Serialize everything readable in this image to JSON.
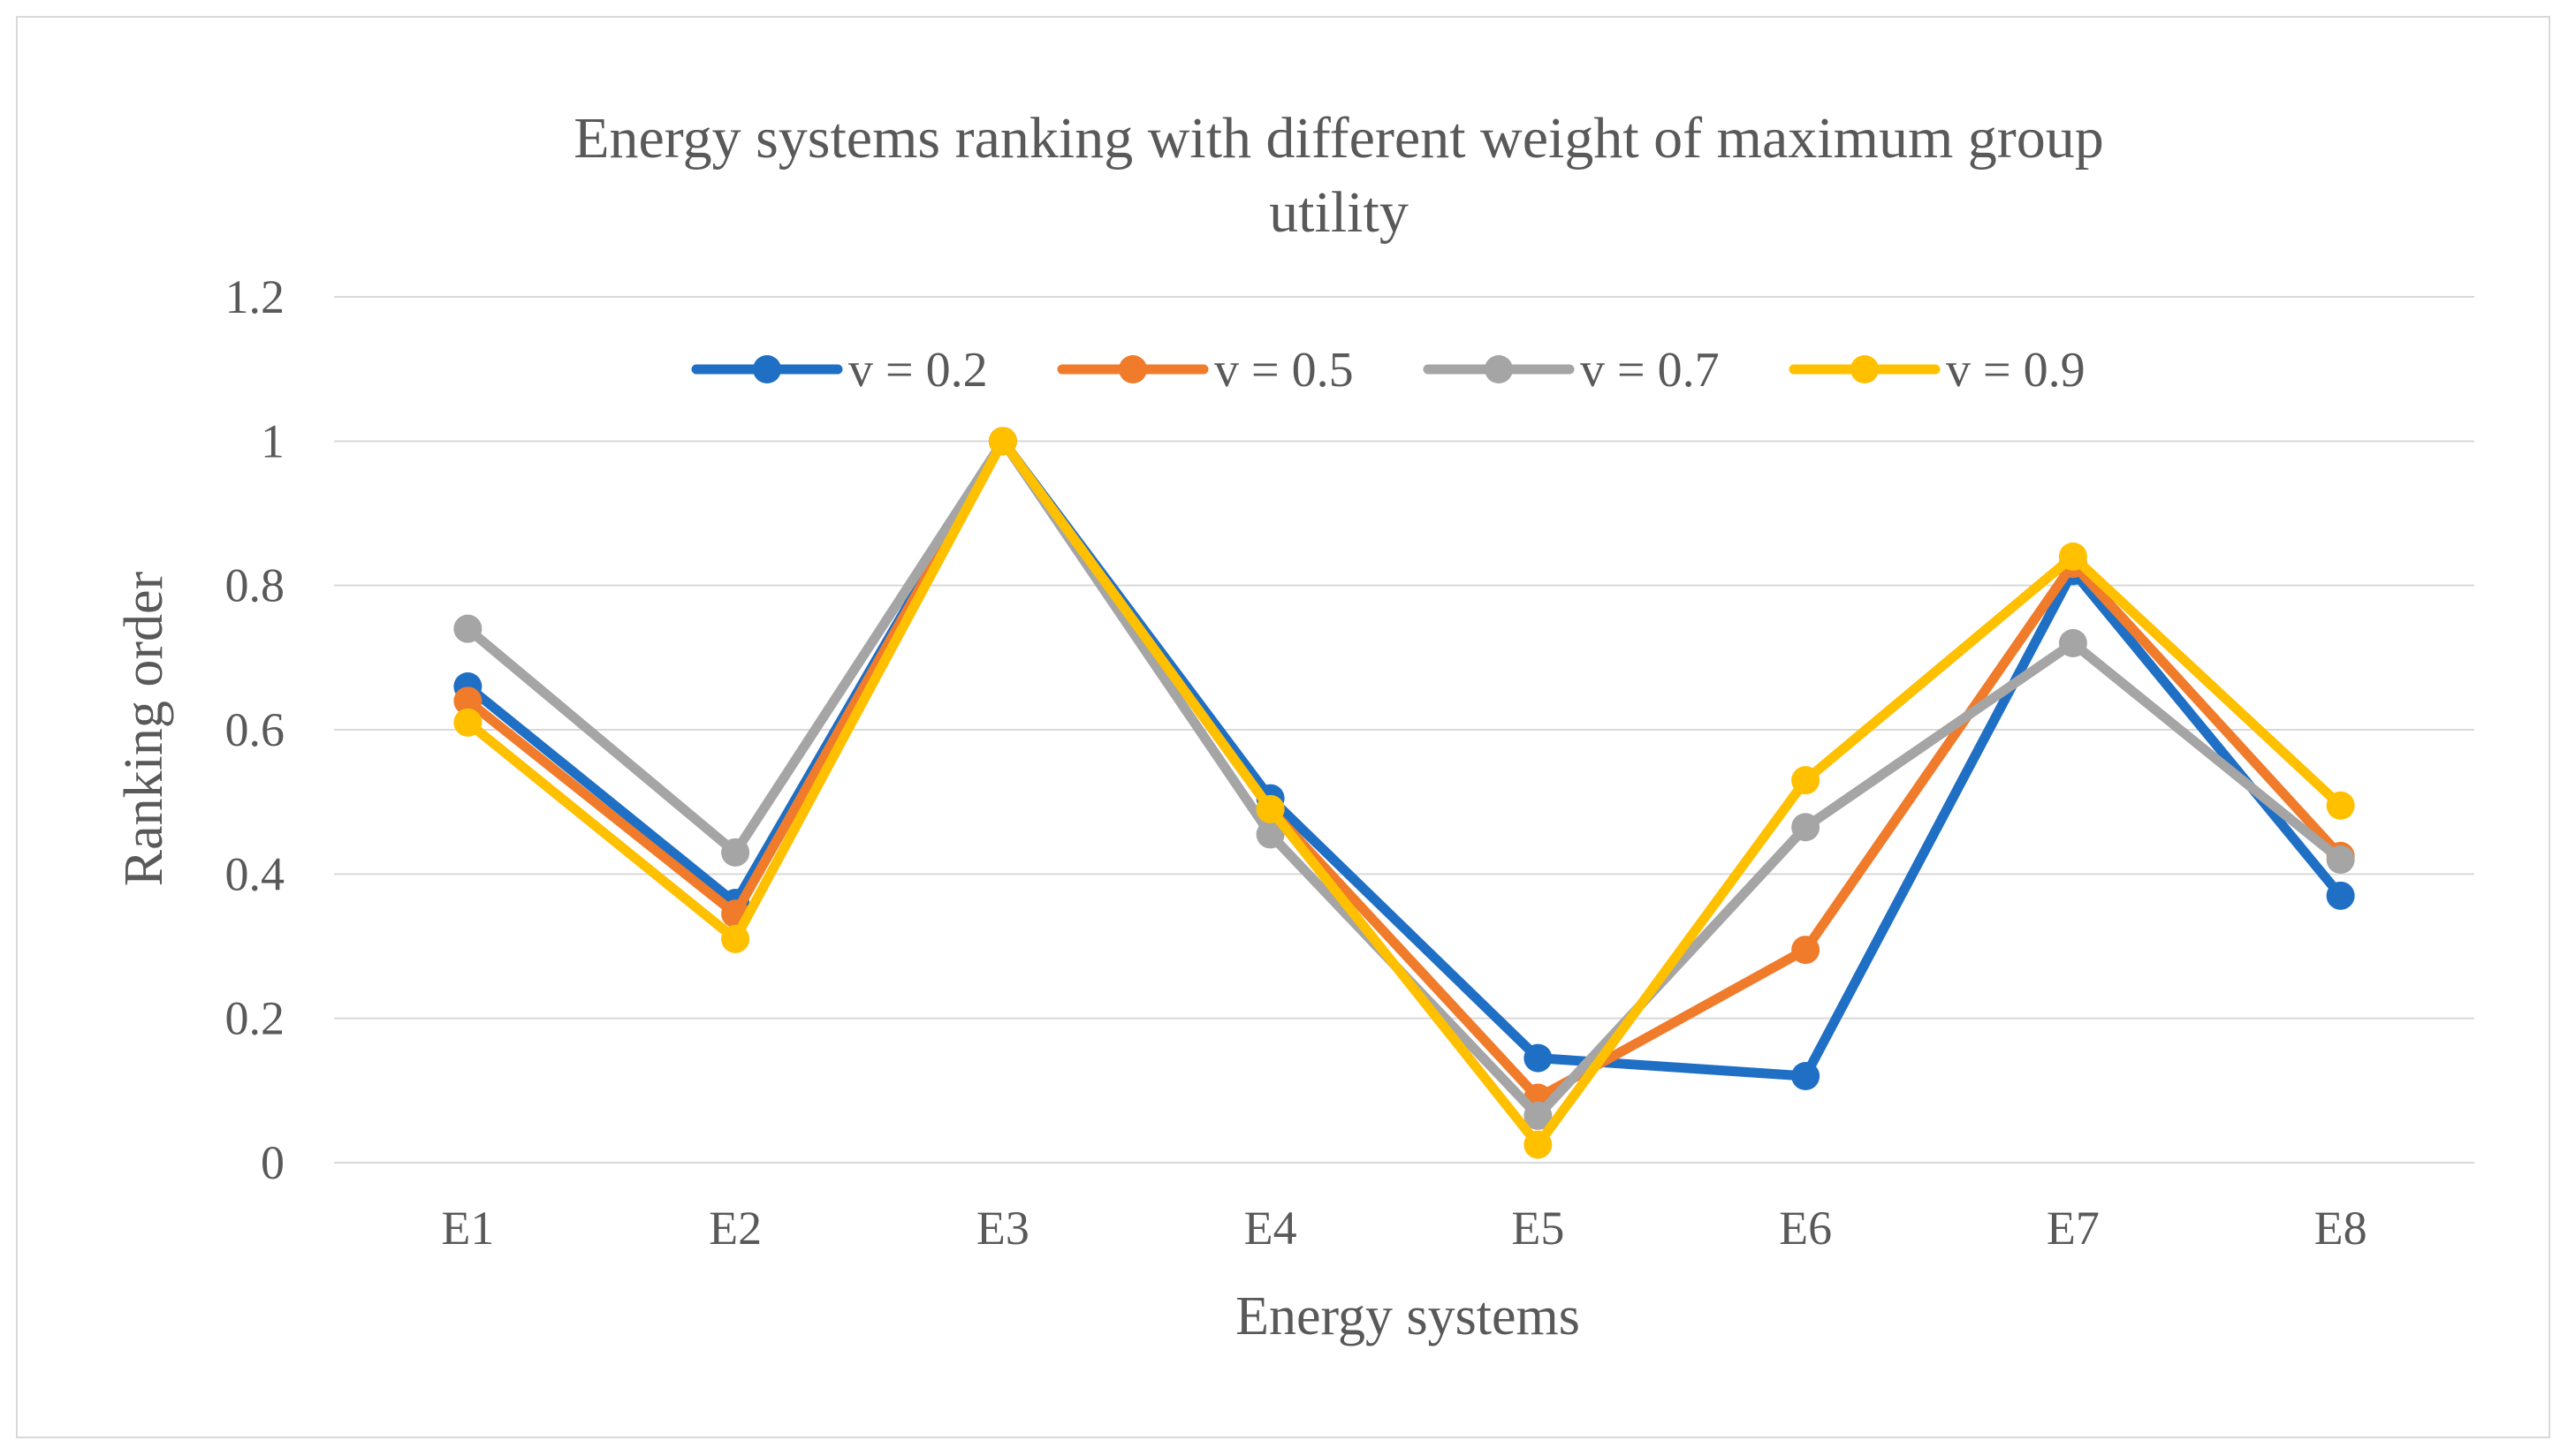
{
  "chart_data": {
    "type": "line",
    "title": "Energy systems ranking with different weight of maximum group utility",
    "title_lines": [
      "Energy systems ranking with different weight of maximum group",
      "utility"
    ],
    "xlabel": "Energy systems",
    "ylabel": "Ranking order",
    "categories": [
      "E1",
      "E2",
      "E3",
      "E4",
      "E5",
      "E6",
      "E7",
      "E8"
    ],
    "ylim": [
      0,
      1.2
    ],
    "yticks": [
      0,
      0.2,
      0.4,
      0.6,
      0.8,
      1,
      1.2
    ],
    "ytick_labels": [
      "0",
      "0.2",
      "0.4",
      "0.6",
      "0.8",
      "1",
      "1.2"
    ],
    "grid": true,
    "legend_position": "top",
    "series": [
      {
        "name": "v = 0.2",
        "color": "#1f6fc5",
        "values": [
          0.66,
          0.36,
          1.0,
          0.505,
          0.145,
          0.12,
          0.82,
          0.37
        ]
      },
      {
        "name": "v = 0.5",
        "color": "#f07b2b",
        "values": [
          0.64,
          0.345,
          1.0,
          0.49,
          0.09,
          0.295,
          0.83,
          0.425
        ]
      },
      {
        "name": "v = 0.7",
        "color": "#a5a5a5",
        "values": [
          0.74,
          0.43,
          1.0,
          0.455,
          0.065,
          0.465,
          0.72,
          0.42
        ]
      },
      {
        "name": "v = 0.9",
        "color": "#ffc000",
        "values": [
          0.61,
          0.31,
          1.0,
          0.49,
          0.025,
          0.53,
          0.84,
          0.495
        ]
      }
    ]
  }
}
